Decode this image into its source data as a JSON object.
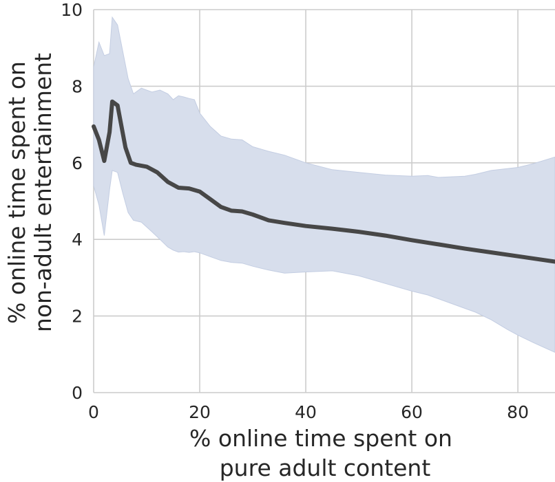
{
  "chart_data": {
    "type": "line",
    "xlabel": [
      "% online time spent on",
      "pure adult content"
    ],
    "ylabel": [
      "% online time spent on",
      "non-adult entertainment"
    ],
    "xlim": [
      0,
      87
    ],
    "ylim": [
      0,
      10
    ],
    "x_ticks": [
      0,
      20,
      40,
      60,
      80
    ],
    "y_ticks": [
      0,
      2,
      4,
      6,
      8,
      10
    ],
    "grid": true,
    "colors": {
      "line": "#474747",
      "band": "#d7deec",
      "band_edge": "#c3cde2",
      "grid": "#cccccc",
      "text": "#262626"
    },
    "series": [
      {
        "x": [
          0,
          1,
          2,
          3,
          3.5,
          4.5,
          6,
          7,
          8,
          10,
          12,
          14,
          16,
          18,
          20,
          22,
          24,
          26,
          28,
          30,
          33,
          36,
          40,
          45,
          50,
          55,
          60,
          65,
          70,
          75,
          80,
          87
        ],
        "y": [
          6.95,
          6.6,
          6.05,
          6.8,
          7.6,
          7.5,
          6.4,
          6.0,
          5.95,
          5.9,
          5.75,
          5.5,
          5.35,
          5.33,
          5.25,
          5.05,
          4.85,
          4.75,
          4.73,
          4.65,
          4.5,
          4.43,
          4.35,
          4.28,
          4.2,
          4.1,
          3.98,
          3.87,
          3.76,
          3.66,
          3.56,
          3.42
        ],
        "ci_x": [
          0,
          1,
          2,
          3,
          3.5,
          4.5,
          5.5,
          6.5,
          7.5,
          9,
          11,
          12.5,
          14,
          15,
          16,
          17,
          18,
          19,
          20,
          22,
          24,
          26,
          28,
          30,
          33,
          36,
          40,
          45,
          50,
          55,
          60,
          63,
          65,
          70,
          72,
          75,
          78,
          80,
          83,
          87
        ],
        "ci_upper": [
          8.5,
          9.15,
          8.8,
          8.85,
          9.8,
          9.6,
          8.9,
          8.2,
          7.8,
          7.95,
          7.85,
          7.9,
          7.8,
          7.65,
          7.75,
          7.72,
          7.68,
          7.65,
          7.3,
          6.95,
          6.7,
          6.62,
          6.6,
          6.42,
          6.3,
          6.2,
          6.0,
          5.82,
          5.75,
          5.68,
          5.65,
          5.67,
          5.62,
          5.65,
          5.7,
          5.8,
          5.85,
          5.88,
          5.98,
          6.15
        ],
        "ci_lower": [
          5.4,
          4.9,
          4.1,
          5.3,
          5.8,
          5.75,
          5.2,
          4.7,
          4.5,
          4.45,
          4.2,
          4.0,
          3.8,
          3.72,
          3.67,
          3.68,
          3.66,
          3.68,
          3.65,
          3.55,
          3.45,
          3.4,
          3.38,
          3.3,
          3.2,
          3.12,
          3.15,
          3.18,
          3.05,
          2.85,
          2.65,
          2.55,
          2.45,
          2.2,
          2.1,
          1.9,
          1.65,
          1.5,
          1.3,
          1.05
        ]
      }
    ]
  }
}
